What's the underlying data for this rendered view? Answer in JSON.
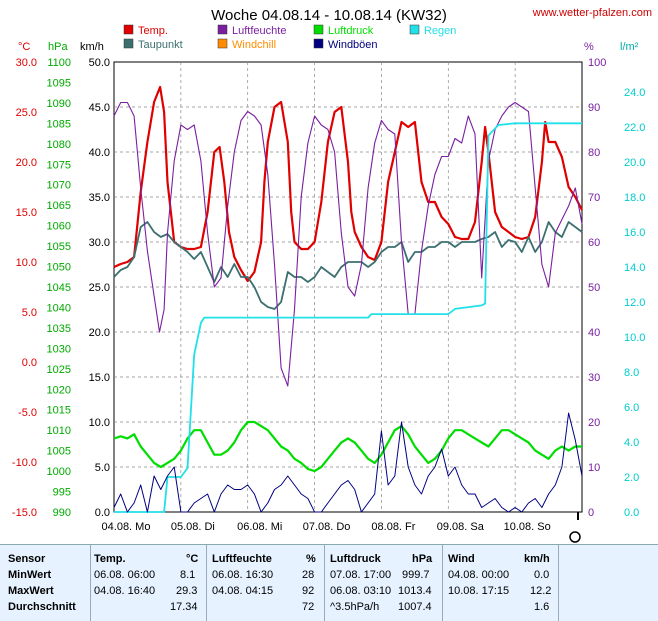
{
  "header": {
    "title": "Woche 04.08.14 - 10.08.14 (KW32)",
    "url": "www.wetter-pfalzen.com"
  },
  "colors": {
    "temp": "#e00000",
    "dew": "#3c7070",
    "humidity": "#7a1fa0",
    "pressure": "#00dd00",
    "windchill": "#ff8c00",
    "rain": "#20e0e8",
    "wind": "#00007a",
    "gust": "#000080"
  },
  "legend": [
    {
      "key": "temp",
      "label": "Temp.",
      "color": "#e00000"
    },
    {
      "key": "humidity",
      "label": "Luftfeuchte",
      "color": "#7a1fa0"
    },
    {
      "key": "pressure",
      "label": "Luftdruck",
      "color": "#00dd00"
    },
    {
      "key": "rain",
      "label": "Regen",
      "color": "#20e0e8"
    },
    {
      "key": "dew",
      "label": "Taupunkt",
      "color": "#3c7070"
    },
    {
      "key": "windchill",
      "label": "Windchill",
      "color": "#ff8c00"
    },
    {
      "key": "gust",
      "label": "Windböen",
      "color": "#000080"
    }
  ],
  "axes": {
    "temp": {
      "title": "°C",
      "ticks": [
        "30.0",
        "25.0",
        "20.0",
        "15.0",
        "10.0",
        "5.0",
        "0.0",
        "-5.0",
        "-10.0",
        "-15.0"
      ]
    },
    "pressure": {
      "title": "hPa",
      "ticks": [
        "1100",
        "1095",
        "1090",
        "1085",
        "1080",
        "1075",
        "1070",
        "1065",
        "1060",
        "1055",
        "1050",
        "1045",
        "1040",
        "1035",
        "1030",
        "1025",
        "1020",
        "1015",
        "1010",
        "1005",
        "1000",
        "995",
        "990"
      ]
    },
    "wind": {
      "title": "km/h",
      "ticks": [
        "50.0",
        "45.0",
        "40.0",
        "35.0",
        "30.0",
        "25.0",
        "20.0",
        "15.0",
        "10.0",
        "5.0",
        "0.0"
      ]
    },
    "humidity": {
      "title": "%",
      "ticks": [
        "100",
        "90",
        "80",
        "70",
        "60",
        "50",
        "40",
        "30",
        "20",
        "10",
        "0"
      ]
    },
    "rain": {
      "title": "l/m²",
      "ticks": [
        "24.0",
        "22.0",
        "20.0",
        "18.0",
        "16.0",
        "14.0",
        "12.0",
        "10.0",
        "8.0",
        "6.0",
        "4.0",
        "2.0",
        "0.0"
      ]
    }
  },
  "xaxis": {
    "labels": [
      "04.08. Mo",
      "05.08. Di",
      "06.08. Mi",
      "07.08. Do",
      "08.08. Fr",
      "09.08. Sa",
      "10.08. So"
    ]
  },
  "chart_data": {
    "type": "line",
    "title": "Woche 04.08.14 - 10.08.14 (KW32)",
    "x_unit": "Tage seit 04.08. 00:00",
    "ranges": {
      "temp": [
        -15,
        30
      ],
      "pressure": [
        990,
        1100
      ],
      "wind": [
        0,
        50
      ],
      "humidity": [
        0,
        100
      ],
      "rain": [
        0,
        25.7
      ]
    },
    "grid": true,
    "series": [
      {
        "name": "Temp.",
        "axis": "temp",
        "color": "#e00000",
        "x": [
          0,
          0.1,
          0.2,
          0.3,
          0.4,
          0.5,
          0.6,
          0.69,
          0.75,
          0.8,
          0.9,
          1.0,
          1.1,
          1.2,
          1.3,
          1.4,
          1.5,
          1.58,
          1.65,
          1.72,
          1.8,
          1.9,
          2.0,
          2.1,
          2.2,
          2.25,
          2.3,
          2.4,
          2.5,
          2.6,
          2.65,
          2.7,
          2.8,
          2.9,
          3.0,
          3.1,
          3.2,
          3.3,
          3.4,
          3.5,
          3.55,
          3.6,
          3.7,
          3.8,
          3.9,
          4.0,
          4.1,
          4.2,
          4.3,
          4.4,
          4.5,
          4.6,
          4.7,
          4.8,
          4.9,
          5.0,
          5.1,
          5.2,
          5.3,
          5.4,
          5.5,
          5.55,
          5.6,
          5.7,
          5.8,
          5.9,
          6.0,
          6.1,
          6.2,
          6.3,
          6.4,
          6.45,
          6.5,
          6.6,
          6.7,
          6.8,
          6.9,
          7.0
        ],
        "y": [
          9.5,
          9.8,
          10,
          10.5,
          17,
          22,
          26,
          27.5,
          25,
          18,
          12,
          11.5,
          11.3,
          11.3,
          11.5,
          15,
          21,
          21.5,
          18,
          13,
          10.5,
          9.2,
          8.1,
          9,
          12,
          18,
          22,
          25.5,
          26,
          22,
          15,
          12,
          11.3,
          11.3,
          12,
          16,
          22,
          25,
          25.5,
          20,
          15,
          13,
          11.5,
          10.5,
          10.2,
          12,
          18,
          21,
          24,
          23.5,
          24,
          18,
          16,
          16,
          14.5,
          13.8,
          12.5,
          12.3,
          12.3,
          14,
          20,
          23.5,
          21,
          15,
          13.5,
          13,
          12.5,
          12.3,
          12.5,
          14.5,
          20,
          24,
          22,
          22,
          20.5,
          17.5,
          16.5,
          15.2
        ]
      },
      {
        "name": "Taupunkt",
        "axis": "temp",
        "color": "#3c7070",
        "x": [
          0,
          0.1,
          0.2,
          0.3,
          0.4,
          0.5,
          0.6,
          0.7,
          0.8,
          0.9,
          1.0,
          1.1,
          1.2,
          1.3,
          1.4,
          1.5,
          1.6,
          1.7,
          1.8,
          1.9,
          2.0,
          2.1,
          2.2,
          2.3,
          2.4,
          2.5,
          2.6,
          2.7,
          2.8,
          2.9,
          3.0,
          3.1,
          3.2,
          3.3,
          3.4,
          3.5,
          3.6,
          3.7,
          3.8,
          3.9,
          4.0,
          4.1,
          4.2,
          4.3,
          4.4,
          4.5,
          4.6,
          4.7,
          4.8,
          4.9,
          5.0,
          5.1,
          5.2,
          5.3,
          5.4,
          5.5,
          5.6,
          5.7,
          5.8,
          5.9,
          6.0,
          6.1,
          6.2,
          6.3,
          6.4,
          6.5,
          6.6,
          6.7,
          6.8,
          6.9,
          7.0
        ],
        "y": [
          8.5,
          9.2,
          9.5,
          10.5,
          13.5,
          14,
          13,
          12.5,
          12.8,
          12,
          11.5,
          11,
          10.3,
          11,
          9.5,
          8,
          9.5,
          8.5,
          9.8,
          8.5,
          8.5,
          7.5,
          6,
          5.5,
          5.3,
          6,
          9,
          8.5,
          8.5,
          8,
          8.5,
          9.5,
          9,
          8.5,
          9.5,
          10,
          10,
          10,
          9.5,
          10,
          11,
          11.5,
          11.5,
          12,
          10,
          11,
          11,
          11.5,
          11.5,
          12,
          12,
          11.5,
          12,
          12,
          12,
          12.3,
          12.5,
          13,
          11.5,
          12.2,
          12,
          11,
          12.5,
          11,
          12,
          14,
          13,
          12.5,
          14,
          13.5,
          13
        ]
      },
      {
        "name": "Luftfeuchte",
        "axis": "humidity",
        "color": "#7a1fa0",
        "x": [
          0,
          0.1,
          0.2,
          0.3,
          0.4,
          0.5,
          0.6,
          0.68,
          0.75,
          0.8,
          0.9,
          1.0,
          1.1,
          1.2,
          1.3,
          1.4,
          1.5,
          1.6,
          1.7,
          1.8,
          1.9,
          2.0,
          2.1,
          2.2,
          2.3,
          2.4,
          2.5,
          2.6,
          2.7,
          2.8,
          2.9,
          3.0,
          3.1,
          3.2,
          3.3,
          3.4,
          3.5,
          3.6,
          3.7,
          3.8,
          3.9,
          4.0,
          4.1,
          4.2,
          4.3,
          4.4,
          4.5,
          4.6,
          4.7,
          4.8,
          4.9,
          5.0,
          5.1,
          5.2,
          5.3,
          5.4,
          5.5,
          5.6,
          5.7,
          5.8,
          5.9,
          6.0,
          6.1,
          6.2,
          6.3,
          6.4,
          6.5,
          6.6,
          6.7,
          6.8,
          6.9,
          7.0
        ],
        "y": [
          88,
          91,
          91,
          88,
          72,
          58,
          48,
          40,
          45,
          62,
          78,
          86,
          85,
          86,
          78,
          62,
          50,
          52,
          68,
          80,
          87,
          89,
          88,
          86,
          75,
          55,
          32,
          28,
          45,
          70,
          82,
          88,
          86,
          85,
          80,
          62,
          50,
          48,
          55,
          72,
          82,
          87,
          85,
          84,
          60,
          44,
          44,
          58,
          68,
          75,
          79,
          79,
          83,
          82,
          88,
          84,
          52,
          78,
          85,
          88,
          90,
          91,
          90,
          89,
          72,
          55,
          50,
          62,
          65,
          68,
          72,
          64
        ]
      },
      {
        "name": "Luftdruck",
        "axis": "pressure",
        "color": "#00dd00",
        "x": [
          0,
          0.1,
          0.2,
          0.3,
          0.4,
          0.5,
          0.6,
          0.7,
          0.8,
          0.9,
          1.0,
          1.1,
          1.2,
          1.3,
          1.4,
          1.5,
          1.6,
          1.7,
          1.8,
          1.9,
          2.0,
          2.1,
          2.2,
          2.3,
          2.4,
          2.5,
          2.6,
          2.7,
          2.8,
          2.9,
          3.0,
          3.1,
          3.2,
          3.3,
          3.4,
          3.5,
          3.6,
          3.7,
          3.8,
          3.9,
          4.0,
          4.1,
          4.2,
          4.3,
          4.4,
          4.5,
          4.6,
          4.7,
          4.8,
          4.9,
          5.0,
          5.1,
          5.2,
          5.3,
          5.4,
          5.5,
          5.6,
          5.7,
          5.8,
          5.9,
          6.0,
          6.1,
          6.2,
          6.3,
          6.4,
          6.5,
          6.6,
          6.7,
          6.8,
          6.9,
          7.0
        ],
        "y": [
          1008,
          1008.5,
          1008,
          1009,
          1006,
          1004,
          1002,
          1001,
          1002,
          1003,
          1005,
          1008,
          1010,
          1010,
          1007,
          1004,
          1004,
          1005,
          1007,
          1010,
          1012,
          1012,
          1011,
          1010,
          1008,
          1006,
          1005,
          1003,
          1002,
          1000.5,
          1000,
          1001,
          1003,
          1005,
          1007,
          1008,
          1007,
          1005,
          1003,
          1002,
          1004,
          1007,
          1010,
          1011,
          1009,
          1006,
          1004,
          1002,
          1003,
          1005,
          1008,
          1010,
          1010,
          1009,
          1008,
          1007,
          1006,
          1008,
          1010,
          1010,
          1009,
          1008,
          1007,
          1005,
          1004,
          1003,
          1005,
          1006,
          1005,
          1006,
          1006
        ]
      },
      {
        "name": "Regen",
        "axis": "rain",
        "color": "#20e0e8",
        "x": [
          0,
          0.75,
          0.8,
          1.0,
          1.1,
          1.2,
          1.3,
          1.35,
          1.5,
          2.0,
          3.0,
          3.8,
          3.85,
          4.5,
          5.0,
          5.1,
          5.5,
          5.55,
          5.6,
          5.75,
          6.0,
          7.0
        ],
        "y": [
          0,
          0,
          2,
          2,
          2.5,
          9,
          10.8,
          11.1,
          11.1,
          11.1,
          11.1,
          11.1,
          11.3,
          11.3,
          11.3,
          11.6,
          11.8,
          11.9,
          21.5,
          22.1,
          22.2,
          22.2
        ]
      },
      {
        "name": "Windböen",
        "axis": "wind",
        "color": "#000080",
        "x": [
          0,
          0.1,
          0.2,
          0.3,
          0.4,
          0.5,
          0.6,
          0.7,
          0.8,
          0.9,
          1.0,
          1.1,
          1.2,
          1.3,
          1.4,
          1.5,
          1.6,
          1.7,
          1.8,
          1.9,
          2.0,
          2.1,
          2.2,
          2.3,
          2.4,
          2.5,
          2.6,
          2.7,
          2.8,
          2.9,
          3.0,
          3.1,
          3.2,
          3.3,
          3.4,
          3.5,
          3.6,
          3.7,
          3.8,
          3.9,
          4.0,
          4.1,
          4.2,
          4.3,
          4.4,
          4.5,
          4.6,
          4.7,
          4.8,
          4.9,
          5.0,
          5.1,
          5.2,
          5.3,
          5.4,
          5.5,
          5.6,
          5.7,
          5.8,
          5.9,
          6.0,
          6.1,
          6.2,
          6.3,
          6.4,
          6.5,
          6.6,
          6.7,
          6.8,
          6.9,
          7.0
        ],
        "y": [
          0.5,
          2,
          0,
          1,
          3,
          0,
          4,
          2.5,
          4,
          5,
          0,
          0,
          1,
          1.5,
          2,
          0,
          2,
          3,
          2.5,
          2.5,
          3,
          2,
          0,
          1,
          2.5,
          3,
          4,
          3,
          2,
          1.5,
          0,
          0,
          1,
          2,
          3,
          3.5,
          2.5,
          0,
          1,
          2,
          9,
          3,
          4,
          10,
          5,
          3,
          2,
          4,
          5,
          7,
          4,
          5,
          3,
          2,
          2,
          0.5,
          1,
          1.5,
          0.5,
          0,
          0.5,
          0,
          1,
          1.5,
          0.5,
          2,
          3,
          5,
          11,
          8,
          4
        ]
      }
    ]
  },
  "summary": {
    "headers": {
      "sensor": "Sensor",
      "temp": "Temp.",
      "temp_unit": "°C",
      "hum": "Luftfeuchte",
      "hum_unit": "%",
      "press": "Luftdruck",
      "press_unit": "hPa",
      "wind": "Wind",
      "wind_unit": "km/h"
    },
    "rows": [
      {
        "label": "MinWert",
        "temp_time": "06.08.  06:00",
        "temp_val": "8.1",
        "hum_time": "06.08.  16:30",
        "hum_val": "28",
        "press_time": "07.08.  17:00",
        "press_val": "999.7",
        "wind_time": "04.08.  00:00",
        "wind_val": "0.0"
      },
      {
        "label": "MaxWert",
        "temp_time": "04.08.  16:40",
        "temp_val": "29.3",
        "hum_time": "04.08.  04:15",
        "hum_val": "92",
        "press_time": "06.08.  03:10",
        "press_val": "1013.4",
        "wind_time": "10.08.  17:15",
        "wind_val": "12.2"
      },
      {
        "label": "Durchschnitt",
        "temp_time": "",
        "temp_val": "17.34",
        "hum_time": "",
        "hum_val": "72",
        "press_time": "^3.5hPa/h",
        "press_val": "1007.4",
        "wind_time": "",
        "wind_val": "1.6"
      }
    ]
  }
}
